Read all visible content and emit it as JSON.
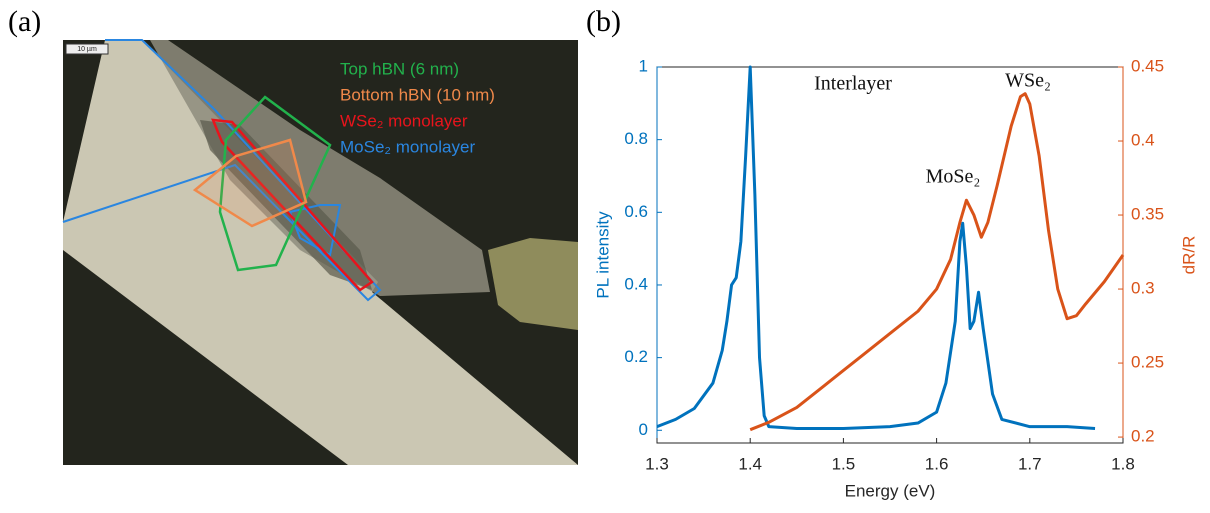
{
  "panel_labels": [
    "(a)",
    "(b)"
  ],
  "image": {
    "scale_bar": "10 µm",
    "legend": [
      {
        "label": "Top hBN (6 nm)",
        "color": "#22b24c"
      },
      {
        "label": "Bottom hBN (10 nm)",
        "color": "#f0894a"
      },
      {
        "label": "WSe₂ monolayer",
        "color": "#e8141c"
      },
      {
        "label": "MoSe₂ monolayer",
        "color": "#2a86e0"
      }
    ]
  },
  "chart_data": {
    "type": "line",
    "xlabel": "Energy (eV)",
    "ylabel": "PL intensity",
    "y2label": "dR/R",
    "annotations": [
      "Interlayer",
      "MoSe₂",
      "WSe₂"
    ],
    "xlim": [
      1.3,
      1.8
    ],
    "xticks": [
      1.3,
      1.4,
      1.5,
      1.6,
      1.7,
      1.8
    ],
    "ylim": [
      -0.035,
      1
    ],
    "yticks": [
      0,
      0.2,
      0.4,
      0.6,
      0.8,
      1
    ],
    "y2lim": [
      0.196,
      0.45
    ],
    "y2ticks": [
      0.2,
      0.25,
      0.3,
      0.35,
      0.4,
      0.45
    ],
    "ycolor": "#0072bd",
    "y2color": "#d95319",
    "series": [
      {
        "color": "#0072bd",
        "axis": "y",
        "x": [
          1.3,
          1.32,
          1.34,
          1.36,
          1.37,
          1.375,
          1.38,
          1.385,
          1.39,
          1.395,
          1.4,
          1.405,
          1.41,
          1.415,
          1.42,
          1.45,
          1.5,
          1.55,
          1.58,
          1.6,
          1.61,
          1.62,
          1.625,
          1.628,
          1.632,
          1.636,
          1.64,
          1.645,
          1.65,
          1.66,
          1.67,
          1.7,
          1.74,
          1.77
        ],
        "values": [
          0.01,
          0.03,
          0.06,
          0.13,
          0.22,
          0.3,
          0.4,
          0.42,
          0.52,
          0.75,
          1.0,
          0.65,
          0.2,
          0.04,
          0.01,
          0.005,
          0.005,
          0.01,
          0.02,
          0.05,
          0.13,
          0.3,
          0.52,
          0.57,
          0.45,
          0.28,
          0.3,
          0.38,
          0.28,
          0.1,
          0.03,
          0.01,
          0.01,
          0.005
        ]
      },
      {
        "color": "#d95319",
        "axis": "y2",
        "x": [
          1.4,
          1.42,
          1.45,
          1.48,
          1.5,
          1.52,
          1.55,
          1.58,
          1.6,
          1.615,
          1.625,
          1.632,
          1.64,
          1.648,
          1.655,
          1.665,
          1.68,
          1.69,
          1.695,
          1.7,
          1.71,
          1.72,
          1.73,
          1.74,
          1.75,
          1.76,
          1.78,
          1.8
        ],
        "values": [
          0.205,
          0.21,
          0.22,
          0.235,
          0.245,
          0.255,
          0.27,
          0.285,
          0.3,
          0.32,
          0.345,
          0.36,
          0.35,
          0.335,
          0.345,
          0.37,
          0.41,
          0.43,
          0.432,
          0.425,
          0.39,
          0.34,
          0.3,
          0.28,
          0.282,
          0.29,
          0.305,
          0.323
        ]
      }
    ]
  }
}
